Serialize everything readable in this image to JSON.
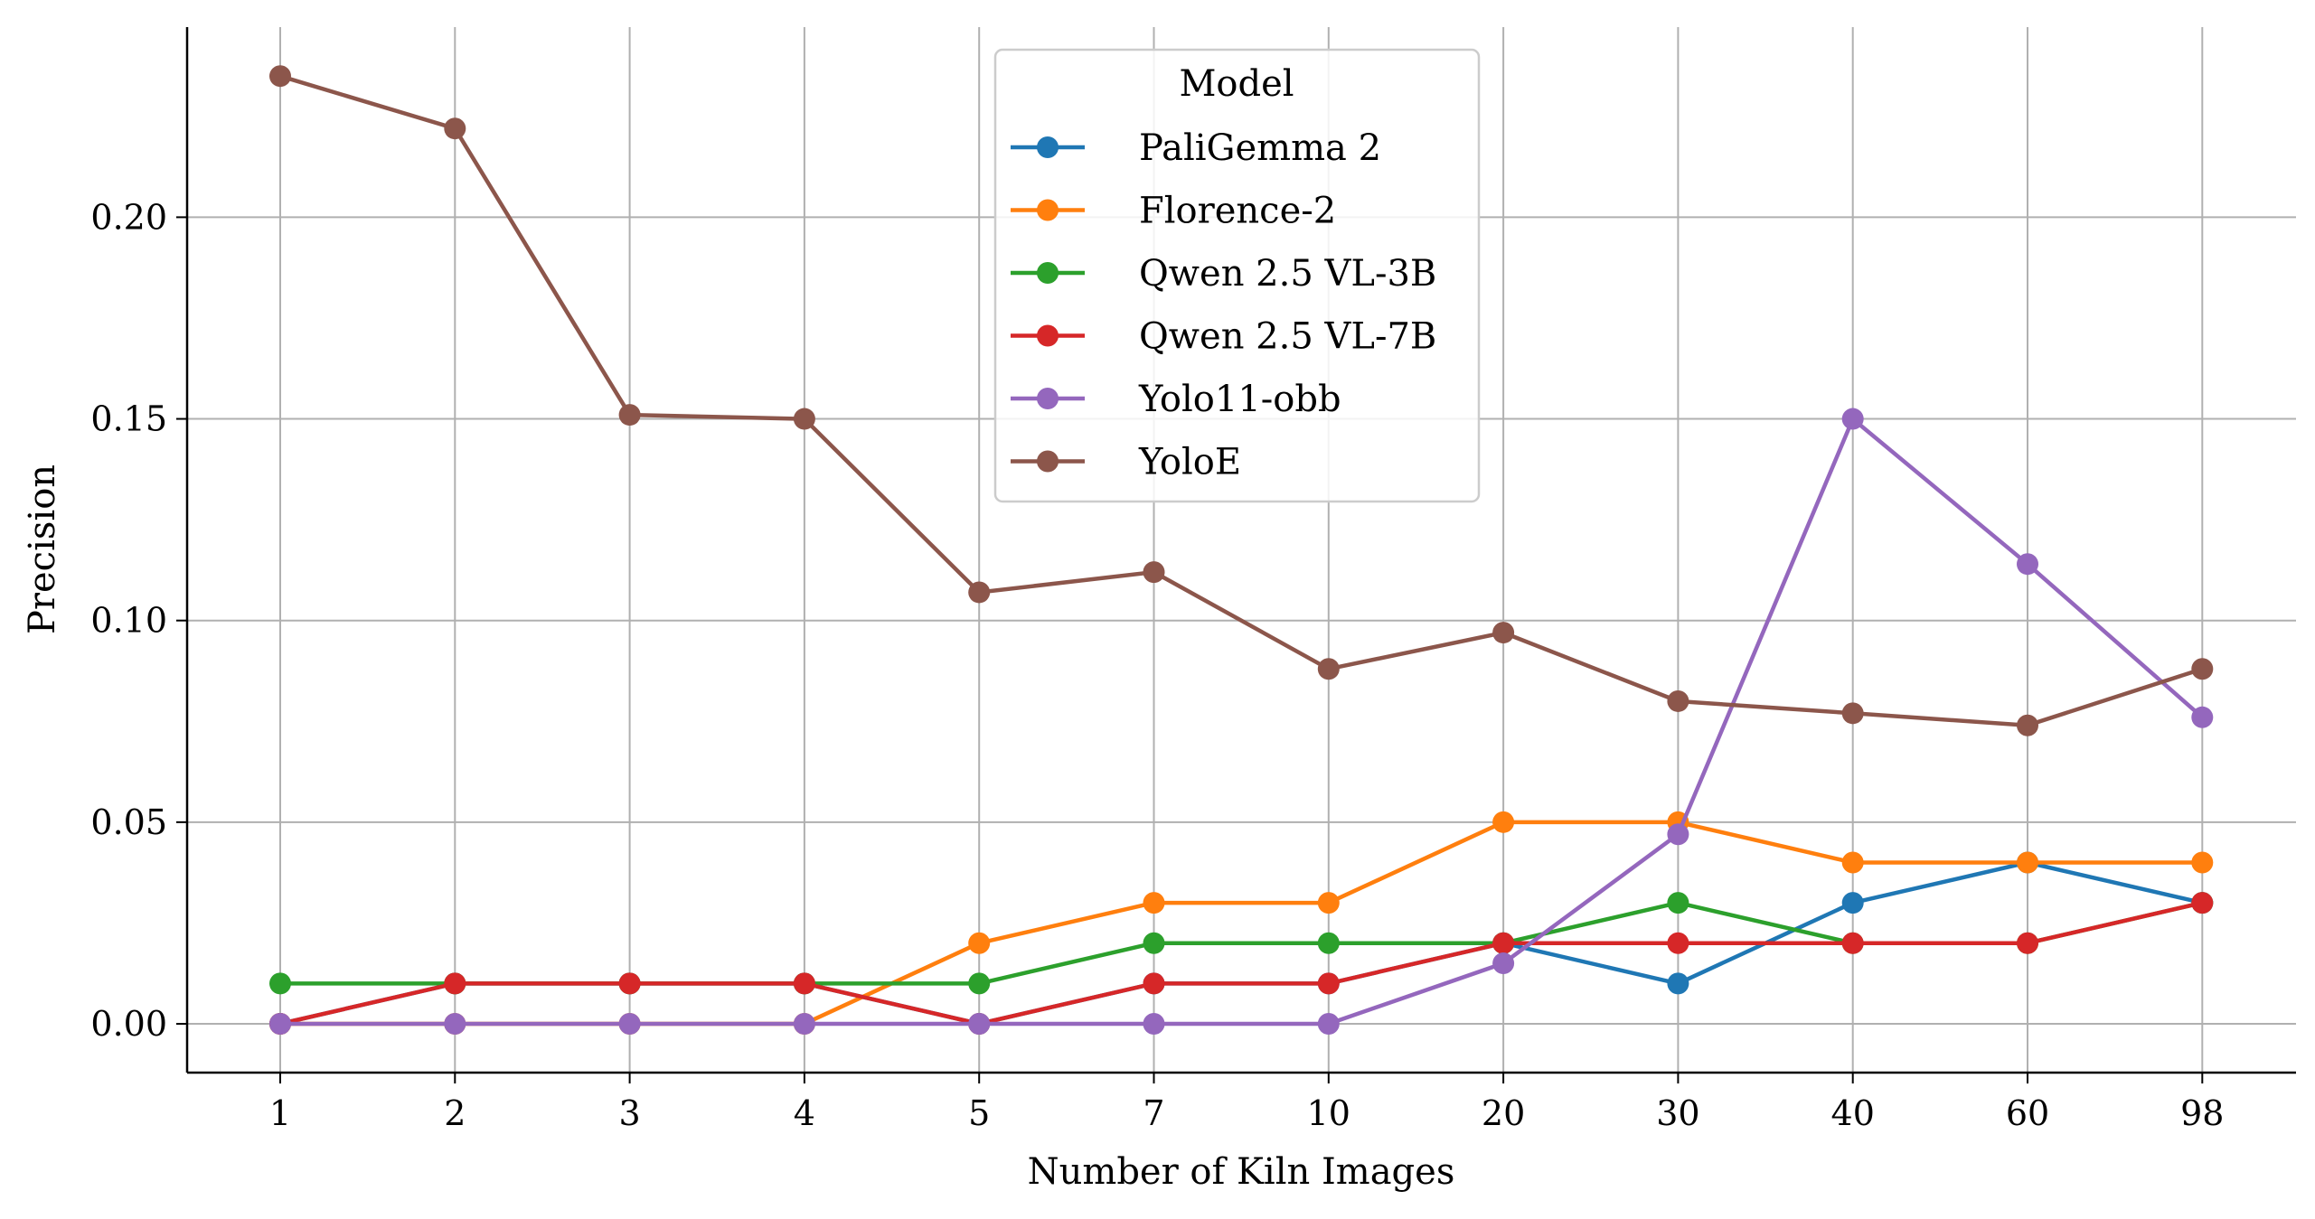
{
  "chart_data": {
    "type": "line",
    "xlabel": "Number of Kiln Images",
    "ylabel": "Precision",
    "categories": [
      "1",
      "2",
      "3",
      "4",
      "5",
      "7",
      "10",
      "20",
      "30",
      "40",
      "60",
      "98"
    ],
    "ylim": [
      -0.012,
      0.246
    ],
    "yticks": [
      "0.00",
      "0.05",
      "0.10",
      "0.15",
      "0.20"
    ],
    "ytick_values": [
      0,
      0.05,
      0.1,
      0.15,
      0.2
    ],
    "grid": true,
    "legend": {
      "title": "Model",
      "placement": "upper-center"
    },
    "series": [
      {
        "name": "PaliGemma 2",
        "color": "#1f77b4",
        "values": [
          0,
          0.01,
          0.01,
          0.01,
          0,
          0.01,
          0.01,
          0.02,
          0.01,
          0.03,
          0.04,
          0.03
        ]
      },
      {
        "name": "Florence-2",
        "color": "#ff7f0e",
        "values": [
          0,
          0,
          0,
          0,
          0.02,
          0.03,
          0.03,
          0.05,
          0.05,
          0.04,
          0.04,
          0.04
        ]
      },
      {
        "name": "Qwen 2.5 VL-3B",
        "color": "#2ca02c",
        "values": [
          0.01,
          0.01,
          0.01,
          0.01,
          0.01,
          0.02,
          0.02,
          0.02,
          0.03,
          0.02,
          0.02,
          0.03
        ]
      },
      {
        "name": "Qwen 2.5 VL-7B",
        "color": "#d62728",
        "values": [
          0,
          0.01,
          0.01,
          0.01,
          0,
          0.01,
          0.01,
          0.02,
          0.02,
          0.02,
          0.02,
          0.03
        ]
      },
      {
        "name": "Yolo11-obb",
        "color": "#9467bd",
        "values": [
          0,
          0,
          0,
          0,
          0,
          0,
          0,
          0.015,
          0.047,
          0.15,
          0.114,
          0.076
        ]
      },
      {
        "name": "YoloE",
        "color": "#8c564b",
        "values": [
          0.235,
          0.222,
          0.151,
          0.15,
          0.107,
          0.112,
          0.088,
          0.097,
          0.08,
          0.077,
          0.074,
          0.088
        ]
      }
    ]
  }
}
